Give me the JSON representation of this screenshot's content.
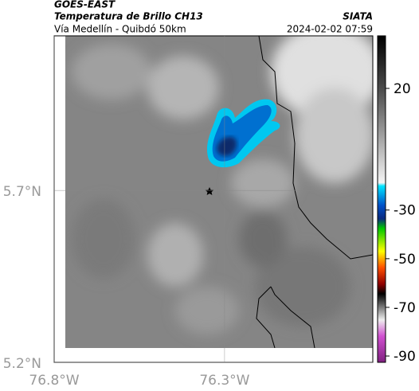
{
  "header": {
    "source": "GOES-EAST",
    "title": "Temperatura de Brillo CH13",
    "subtitle": "Vía Medellín - Quibdó 50km",
    "brand": "SIATA",
    "timestamp": "2024-02-02 07:59"
  },
  "map": {
    "lonlim": [
      -76.8,
      -75.865
    ],
    "latlim": [
      5.2,
      6.15
    ],
    "lon_ticks": [
      {
        "value": -76.8,
        "label": "76.8°W"
      },
      {
        "value": -76.3,
        "label": "76.3°W"
      }
    ],
    "lat_ticks": [
      {
        "value": 5.7,
        "label": "5.7°N"
      },
      {
        "value": 5.2,
        "label": "5.2°N"
      }
    ]
  },
  "colorbar": {
    "lim": [
      -92.6,
      41.6
    ],
    "ticks": [
      20,
      -30,
      -50,
      -70,
      -90
    ]
  }
}
